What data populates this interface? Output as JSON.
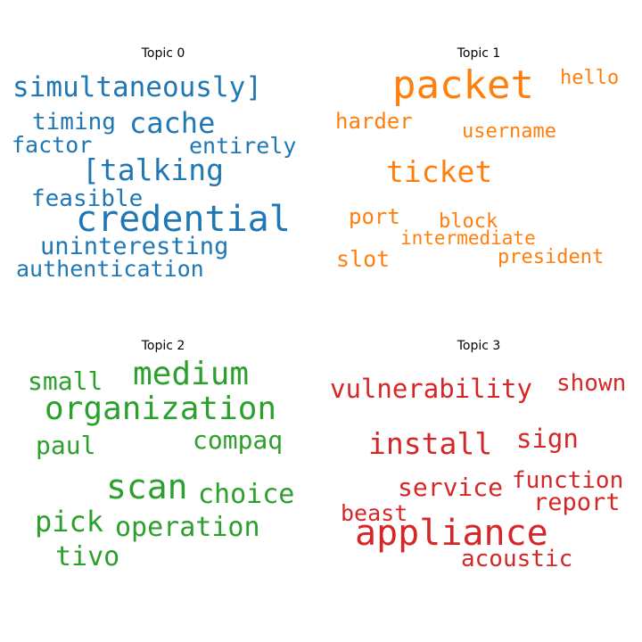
{
  "colors": {
    "topic0": "#1f77b4",
    "topic1": "#ff7f0e",
    "topic2": "#2ca02c",
    "topic3": "#d62728"
  },
  "topics": [
    {
      "title": "Topic 0",
      "words": [
        "simultaneously]",
        "timing",
        "cache",
        "factor",
        "entirely",
        "[talking",
        "feasible",
        "credential",
        "uninteresting",
        "authentication"
      ]
    },
    {
      "title": "Topic 1",
      "words": [
        "packet",
        "hello",
        "harder",
        "username",
        "ticket",
        "port",
        "block",
        "intermediate",
        "slot",
        "president"
      ]
    },
    {
      "title": "Topic 2",
      "words": [
        "medium",
        "small",
        "organization",
        "paul",
        "compaq",
        "scan",
        "choice",
        "pick",
        "operation",
        "tivo"
      ]
    },
    {
      "title": "Topic 3",
      "words": [
        "vulnerability",
        "shown",
        "install",
        "sign",
        "function",
        "service",
        "report",
        "beast",
        "appliance",
        "acoustic"
      ]
    }
  ]
}
